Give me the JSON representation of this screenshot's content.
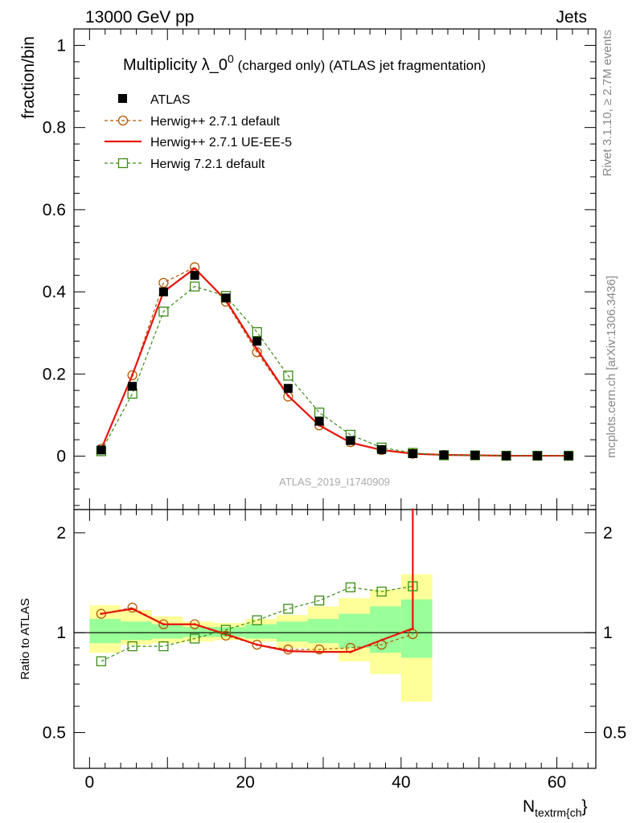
{
  "header": {
    "left": "13000 GeV pp",
    "right": "Jets"
  },
  "plot": {
    "title": "Multiplicity λ_0",
    "title_sup": "0",
    "title_tail": " (charged only) (ATLAS jet fragmentation)",
    "ylabel": "fraction/bin",
    "ratio_ylabel": "Ratio to ATLAS",
    "xlabel_main": "N",
    "xlabel_sub": "textrm{ch",
    "xlabel_close": "}",
    "watermark": "ATLAS_2019_I1740909",
    "side_text_top": "Rivet 3.1.10, ≥ 2.7M events",
    "side_text_bottom": "mcplots.cern.ch [arXiv:1306.3436]"
  },
  "legend": [
    {
      "label": "ATLAS"
    },
    {
      "label": "Herwig++ 2.7.1 default"
    },
    {
      "label": "Herwig++ 2.7.1 UE-EE-5"
    },
    {
      "label": "Herwig 7.2.1 default"
    }
  ],
  "colors": {
    "data": "#000000",
    "herwigpp_default": "#b35900",
    "herwigpp_ueee5": "#e8140c",
    "herwig7": "#3a8c14",
    "band_yellow": "#ffff99",
    "band_green": "#99ff99"
  },
  "chart_data": {
    "type": "line",
    "x": [
      1.5,
      5.5,
      9.5,
      13.5,
      17.5,
      21.5,
      25.5,
      29.5,
      33.5,
      37.5,
      41.5,
      45.5,
      49.5,
      53.5,
      57.5,
      61.5
    ],
    "xlim": [
      -2,
      65
    ],
    "ylim": [
      -0.13,
      1.04
    ],
    "xticks": [
      0,
      20,
      40,
      60
    ],
    "yticks": [
      0,
      0.2,
      0.4,
      0.6,
      0.8,
      1
    ],
    "xticklabels": [
      "0",
      "20",
      "40",
      "60"
    ],
    "yticklabels": [
      "0",
      "0.2",
      "0.4",
      "0.6",
      "0.8",
      "1"
    ],
    "series": [
      {
        "name": "ATLAS",
        "key": "data",
        "values": [
          0.015,
          0.17,
          0.4,
          0.44,
          0.385,
          0.28,
          0.165,
          0.085,
          0.038,
          0.016,
          0.006,
          0.003,
          0.002,
          0.001,
          0.001,
          0.001
        ]
      },
      {
        "name": "Herwig++ 2.7.1 default",
        "key": "herwigpp_default",
        "values": [
          0.018,
          0.197,
          0.422,
          0.46,
          0.376,
          0.253,
          0.145,
          0.075,
          0.034,
          0.015,
          0.006,
          0.003,
          0.002,
          0.001,
          0.001,
          0.001
        ]
      },
      {
        "name": "Herwig++ 2.7.1 UE-EE-5",
        "key": "herwigpp_ueee5",
        "values": [
          0.017,
          0.198,
          0.4,
          0.457,
          0.38,
          0.26,
          0.147,
          0.075,
          0.033,
          0.015,
          0.006,
          0.003,
          0.002,
          0.001,
          0.001,
          0.001
        ]
      },
      {
        "name": "Herwig 7.2.1 default",
        "key": "herwig7",
        "values": [
          0.012,
          0.152,
          0.352,
          0.413,
          0.39,
          0.302,
          0.196,
          0.106,
          0.052,
          0.021,
          0.008,
          0.002,
          0.002,
          0.001,
          0.001,
          0.001
        ]
      }
    ],
    "ratio": {
      "ylabel": "Ratio to ATLAS",
      "ylim": [
        0.39,
        2.35
      ],
      "yticks": [
        0.5,
        1,
        2
      ],
      "yticklabels": [
        "0.5",
        "1",
        "2"
      ],
      "x_edges": [
        0,
        4,
        8,
        12,
        16,
        20,
        24,
        28,
        32,
        36,
        40,
        44
      ],
      "band_yellow_low": [
        0.87,
        0.92,
        0.93,
        0.94,
        0.95,
        0.94,
        0.9,
        0.88,
        0.82,
        0.75,
        0.62
      ],
      "band_yellow_high": [
        1.21,
        1.17,
        1.12,
        1.08,
        1.07,
        1.1,
        1.13,
        1.2,
        1.27,
        1.35,
        1.5
      ],
      "band_green_low": [
        0.93,
        0.95,
        0.96,
        0.97,
        0.97,
        0.96,
        0.94,
        0.93,
        0.9,
        0.87,
        0.84
      ],
      "band_green_high": [
        1.1,
        1.08,
        1.06,
        1.04,
        1.04,
        1.06,
        1.08,
        1.1,
        1.14,
        1.2,
        1.26
      ],
      "series": [
        {
          "name": "Herwig++ 2.7.1 default",
          "key": "herwigpp_default",
          "x": [
            1.5,
            5.5,
            9.5,
            13.5,
            17.5,
            21.5,
            25.5,
            29.5,
            33.5,
            37.5,
            41.5
          ],
          "values": [
            1.14,
            1.19,
            1.06,
            1.06,
            0.98,
            0.92,
            0.89,
            0.89,
            0.9,
            0.92,
            0.99
          ]
        },
        {
          "name": "Herwig++ 2.7.1 UE-EE-5",
          "key": "herwigpp_ueee5",
          "x": [
            1.5,
            5.5,
            9.5,
            13.5,
            17.5,
            21.5,
            25.5,
            29.5,
            33.5,
            37.5,
            41.5,
            41.5
          ],
          "values": [
            1.14,
            1.18,
            1.06,
            1.06,
            0.99,
            0.92,
            0.88,
            0.875,
            0.875,
            0.95,
            1.03,
            2.35
          ]
        },
        {
          "name": "Herwig 7.2.1 default",
          "key": "herwig7",
          "x": [
            1.5,
            5.5,
            9.5,
            13.5,
            17.5,
            21.5,
            25.5,
            29.5,
            33.5,
            37.5,
            41.5
          ],
          "values": [
            0.82,
            0.91,
            0.91,
            0.96,
            1.02,
            1.09,
            1.18,
            1.25,
            1.37,
            1.33,
            1.38
          ]
        }
      ]
    }
  }
}
